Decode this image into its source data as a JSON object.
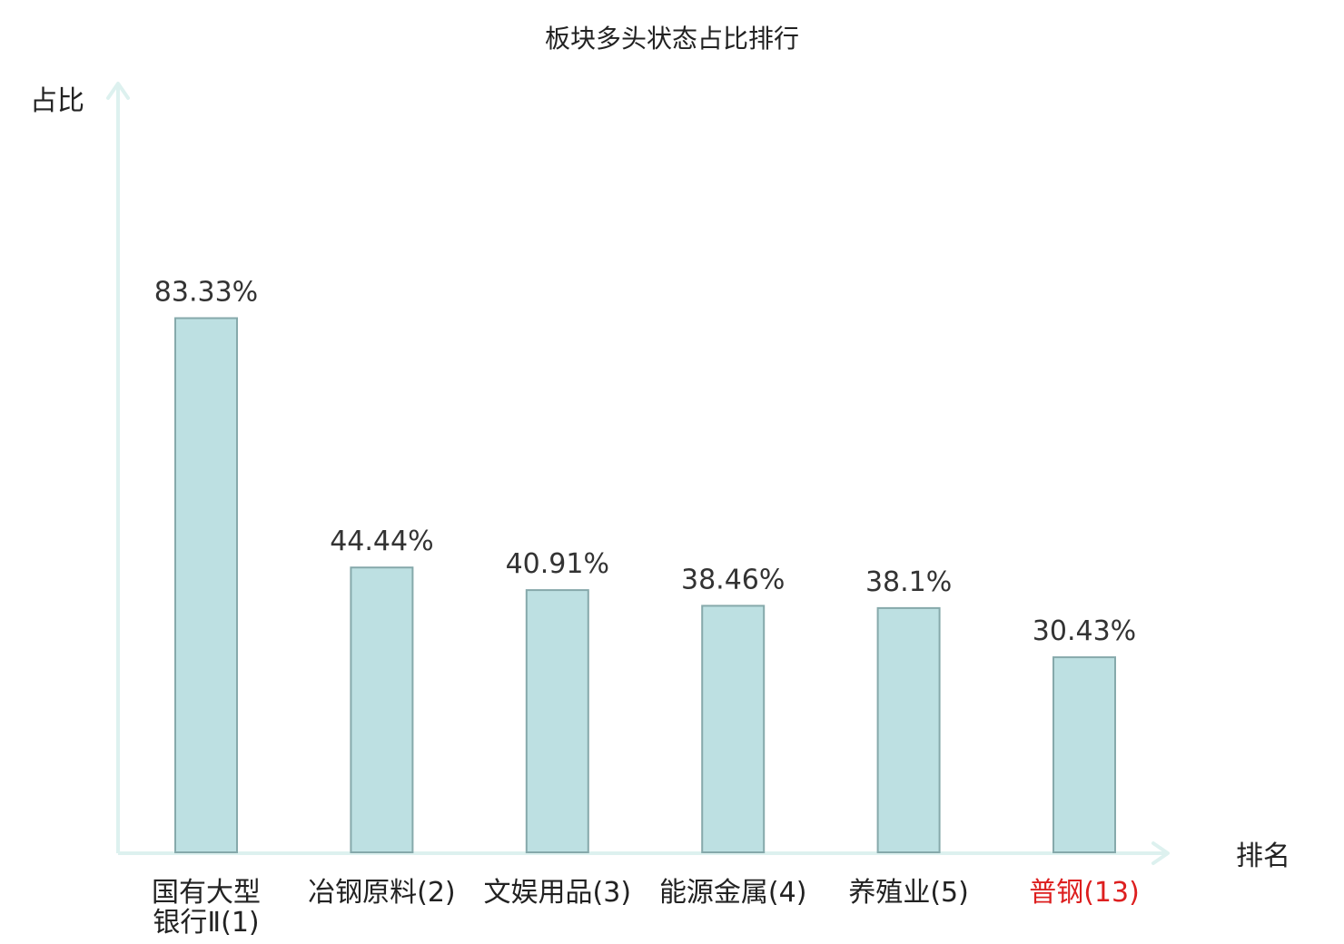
{
  "chart_data": {
    "type": "bar",
    "title": "板块多头状态占比排行",
    "ylabel": "占比",
    "xlabel": "排名",
    "categories": [
      {
        "lines": [
          "国有大型",
          "银行Ⅱ(1)"
        ],
        "highlight": false
      },
      {
        "lines": [
          "冶钢原料(2)"
        ],
        "highlight": false
      },
      {
        "lines": [
          "文娱用品(3)"
        ],
        "highlight": false
      },
      {
        "lines": [
          "能源金属(4)"
        ],
        "highlight": false
      },
      {
        "lines": [
          "养殖业(5)"
        ],
        "highlight": false
      },
      {
        "lines": [
          "普钢(13)"
        ],
        "highlight": true
      }
    ],
    "values": [
      83.33,
      44.44,
      40.91,
      38.46,
      38.1,
      30.43
    ],
    "value_labels": [
      "83.33%",
      "44.44%",
      "40.91%",
      "38.46%",
      "38.1%",
      "30.43%"
    ],
    "ylim": [
      0,
      100
    ],
    "grid": false,
    "colors": {
      "bar_fill": "#bde0e2",
      "bar_stroke": "#86a9ab",
      "axis": "#ddf1ef",
      "label_text": "#222222",
      "highlight_text": "#dd1f1f"
    }
  }
}
